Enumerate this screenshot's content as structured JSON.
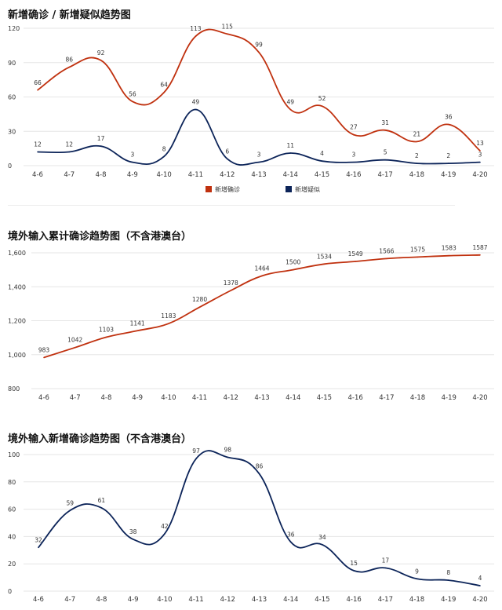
{
  "chart_data": [
    {
      "type": "line",
      "title": "新增确诊 / 新增疑似趋势图",
      "categories": [
        "4-6",
        "4-7",
        "4-8",
        "4-9",
        "4-10",
        "4-11",
        "4-12",
        "4-13",
        "4-14",
        "4-15",
        "4-16",
        "4-17",
        "4-18",
        "4-19",
        "4-20"
      ],
      "y_ticks": [
        "0",
        "30",
        "60",
        "90",
        "120"
      ],
      "ylim": [
        0,
        120
      ],
      "grid": true,
      "legend": "bottom-center",
      "series": [
        {
          "name": "新增确诊",
          "color": "#c0310f",
          "values": [
            66,
            86,
            92,
            56,
            64,
            113,
            115,
            99,
            49,
            52,
            27,
            31,
            21,
            36,
            13
          ]
        },
        {
          "name": "新增疑似",
          "color": "#0c2459",
          "values": [
            12,
            12,
            17,
            3,
            8,
            49,
            6,
            3,
            11,
            4,
            3,
            5,
            2,
            2,
            3
          ]
        }
      ]
    },
    {
      "type": "line",
      "title": "境外输入累计确诊趋势图（不含港澳台）",
      "categories": [
        "4-6",
        "4-7",
        "4-8",
        "4-9",
        "4-10",
        "4-11",
        "4-12",
        "4-13",
        "4-14",
        "4-15",
        "4-16",
        "4-17",
        "4-18",
        "4-19",
        "4-20"
      ],
      "y_ticks": [
        "800",
        "1,000",
        "1,200",
        "1,400",
        "1,600"
      ],
      "ylim": [
        800,
        1600
      ],
      "grid": true,
      "series": [
        {
          "color": "#c0310f",
          "values": [
            983,
            1042,
            1103,
            1141,
            1183,
            1280,
            1378,
            1464,
            1500,
            1534,
            1549,
            1566,
            1575,
            1583,
            1587
          ]
        }
      ]
    },
    {
      "type": "line",
      "title": "境外输入新增确诊趋势图（不含港澳台）",
      "categories": [
        "4-6",
        "4-7",
        "4-8",
        "4-9",
        "4-10",
        "4-11",
        "4-12",
        "4-13",
        "4-14",
        "4-15",
        "4-16",
        "4-17",
        "4-18",
        "4-19",
        "4-20"
      ],
      "y_ticks": [
        "0",
        "20",
        "40",
        "60",
        "80",
        "100"
      ],
      "ylim": [
        0,
        100
      ],
      "grid": true,
      "series": [
        {
          "color": "#0c2459",
          "values": [
            32,
            59,
            61,
            38,
            42,
            97,
            98,
            86,
            36,
            34,
            15,
            17,
            9,
            8,
            4
          ]
        }
      ]
    }
  ]
}
